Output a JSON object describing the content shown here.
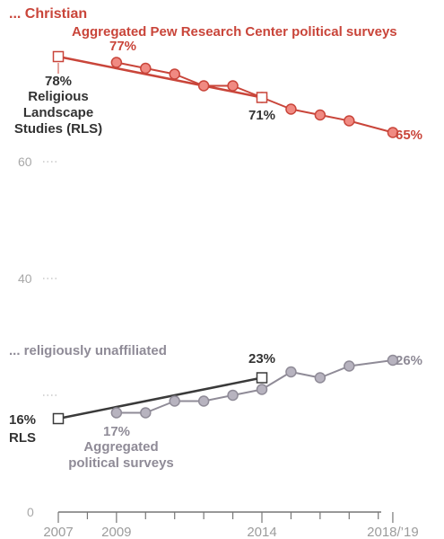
{
  "colors": {
    "christian": "#c9453a",
    "christian_fill": "#f08a82",
    "unaffiliated_line": "#8f8b97",
    "unaffiliated_fill": "#b7b3bf",
    "rls_line": "#3a3a3a",
    "axis_text": "#a8a8a8",
    "gridline": "#bdbdbd"
  },
  "chart_data": {
    "type": "line",
    "x_ticks": [
      "2007",
      "2009",
      "2014",
      "2018/’19"
    ],
    "y_ticks": [
      "0",
      "40",
      "60"
    ],
    "ylim": [
      0,
      80
    ],
    "xlim": [
      2007,
      2019
    ],
    "grid": false,
    "christian": {
      "title": "... Christian",
      "rls": {
        "name": "Religious Landscape Studies (RLS)",
        "x": [
          2007,
          2014
        ],
        "y": [
          78,
          71
        ]
      },
      "surveys": {
        "name": "Aggregated Pew Research Center political surveys",
        "x": [
          2009,
          2010,
          2011,
          2012,
          2013,
          2014,
          2015,
          2016,
          2017,
          2018.5
        ],
        "y": [
          77,
          76,
          75,
          73,
          73,
          71,
          69,
          68,
          67,
          65
        ]
      },
      "labels": {
        "rls_start": "78%",
        "rls_end": "71%",
        "survey_start": "77%",
        "survey_end": "65%"
      }
    },
    "unaffiliated": {
      "title": "... religiously unaffiliated",
      "rls": {
        "name": "RLS",
        "x": [
          2007,
          2014
        ],
        "y": [
          16,
          23
        ]
      },
      "surveys": {
        "name": "Aggregated political surveys",
        "x": [
          2009,
          2010,
          2011,
          2012,
          2013,
          2014,
          2015,
          2016,
          2017,
          2018.5
        ],
        "y": [
          17,
          17,
          19,
          19,
          20,
          21,
          24,
          23,
          25,
          26
        ]
      },
      "labels": {
        "rls_start": "16%",
        "rls_end": "23%",
        "survey_start": "17%",
        "survey_end": "26%"
      }
    },
    "rls_start_label": {
      "value": "16%",
      "series": "RLS"
    },
    "rls_christian_label_lines": [
      "Religious",
      "Landscape",
      "Studies (RLS)"
    ],
    "survey_christian_label": "Aggregated Pew Research Center political surveys",
    "survey_unaffiliated_label_lines": [
      "Aggregated",
      "political surveys"
    ]
  }
}
